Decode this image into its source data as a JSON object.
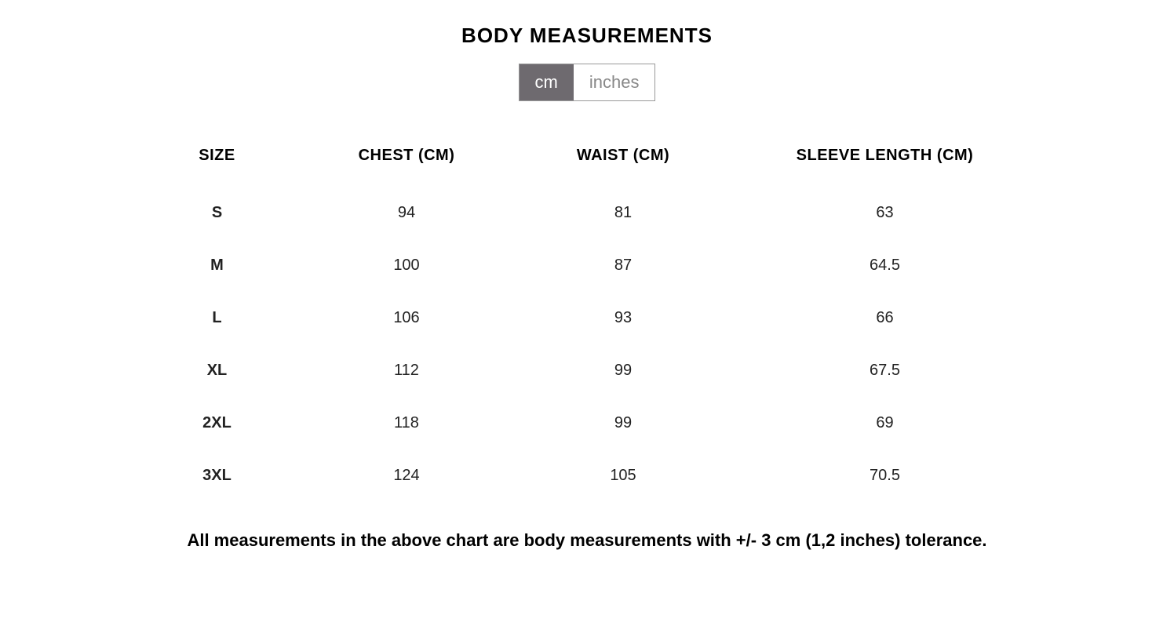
{
  "title": "BODY MEASUREMENTS",
  "unit_toggle": {
    "cm_label": "cm",
    "inches_label": "inches",
    "active": "cm",
    "active_bg": "#6e6a6f",
    "active_fg": "#ffffff",
    "inactive_bg": "#ffffff",
    "inactive_fg": "#888888",
    "border_color": "#999999"
  },
  "table": {
    "type": "table",
    "columns": [
      {
        "key": "size",
        "label": "SIZE"
      },
      {
        "key": "chest",
        "label": "CHEST (CM)"
      },
      {
        "key": "waist",
        "label": "WAIST (CM)"
      },
      {
        "key": "sleeve",
        "label": "SLEEVE LENGTH (CM)"
      }
    ],
    "rows": [
      {
        "size": "S",
        "chest": "94",
        "waist": "81",
        "sleeve": "63"
      },
      {
        "size": "M",
        "chest": "100",
        "waist": "87",
        "sleeve": "64.5"
      },
      {
        "size": "L",
        "chest": "106",
        "waist": "93",
        "sleeve": "66"
      },
      {
        "size": "XL",
        "chest": "112",
        "waist": "99",
        "sleeve": "67.5"
      },
      {
        "size": "2XL",
        "chest": "118",
        "waist": "99",
        "sleeve": "69"
      },
      {
        "size": "3XL",
        "chest": "124",
        "waist": "105",
        "sleeve": "70.5"
      }
    ],
    "header_fontsize": 20,
    "cell_fontsize": 20,
    "background_color": "#ffffff",
    "text_color": "#000000"
  },
  "footnote": "All measurements in the above chart are body measurements with +/- 3 cm (1,2 inches) tolerance."
}
